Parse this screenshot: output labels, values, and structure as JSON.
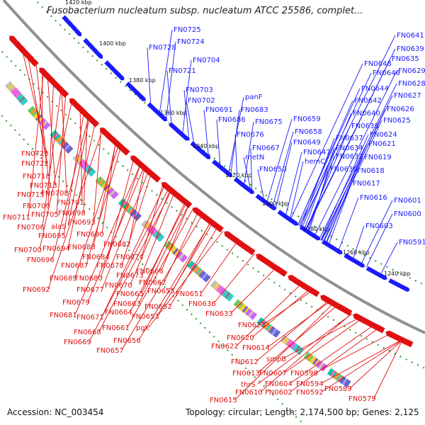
{
  "title": "Fusobacterium nucleatum subsp. nucleatum ATCC 25586, complet...",
  "footer": {
    "accession": "Accession: NC_003454",
    "summary": "Topology: circular; Length: 2,174,500 bp; Genes: 2,125"
  },
  "colors": {
    "backbone": "#888888",
    "forward_genes": "#1a1aff",
    "reverse_genes": "#e01010",
    "dotted_ring": "#2a9a2a"
  },
  "scale_ticks": [
    "1420 kbp",
    "1400 kbp",
    "1380 kbp",
    "1360 kbp",
    "1340 kbp",
    "1320 kbp",
    "1300 kbp",
    "1280 kbp",
    "1260 kbp",
    "1240 kbp"
  ],
  "outer_labels": [
    "FN0725",
    "FN0724",
    "FN0728",
    "FN0704",
    "FN0721",
    "FN0703",
    "FN0702",
    "FN0691",
    "panF",
    "FN0683",
    "FN0686",
    "FN0675",
    "FN0676",
    "FN0667",
    "metN",
    "FN0650",
    "FN0659",
    "FN0658",
    "FN0649",
    "FN0647",
    "hemC",
    "FN0641",
    "FN0639",
    "FN0635",
    "FN0648",
    "FN0646",
    "FN0629",
    "FN0628",
    "FN0644",
    "FN0627",
    "FN0642",
    "FN0626",
    "FN0640",
    "FN0625",
    "FN0638",
    "FN0624",
    "FN0637",
    "FN0621",
    "FN0634",
    "FN0632",
    "FN0619",
    "FN0630",
    "FN0618",
    "FN0617",
    "FN0616",
    "FN0601",
    "FN0600",
    "FN0603",
    "FN0591"
  ],
  "inner_labels": [
    "FN0723",
    "FN0722",
    "FN0718",
    "FN0713",
    "FN0715",
    "FN0708",
    "FN0709",
    "FN0701",
    "FN0711",
    "FN0705",
    "FN0698",
    "FN0706",
    "alaS",
    "FN0693",
    "FN0695",
    "FN0690",
    "FN0700",
    "FN0694",
    "FN0688",
    "FN0682",
    "FN0696",
    "FN0684",
    "FN0674",
    "FN0687",
    "FN0678",
    "FN0689",
    "FN0673",
    "FN0680",
    "FN0666",
    "FN0670",
    "FN0692",
    "FN0677",
    "FN0662",
    "FN0665",
    "FN0655",
    "FN0679",
    "FN0663",
    "FN0651",
    "FN0664",
    "FN0652",
    "FN0681",
    "FN0671",
    "FN0653",
    "FN0661",
    "FN0636",
    "FN0668",
    "pgk",
    "FN0633",
    "FN0656",
    "FN0669",
    "FN0657",
    "FN0623",
    "FN0620",
    "FN0622",
    "FN0614",
    "FN0612",
    "smpB",
    "FN0613",
    "FN0607",
    "FN0598",
    "thrS",
    "FN0604",
    "FN0594",
    "FN0610",
    "FN0602",
    "FN0592",
    "FN0589",
    "FN0615",
    "FN0579"
  ]
}
